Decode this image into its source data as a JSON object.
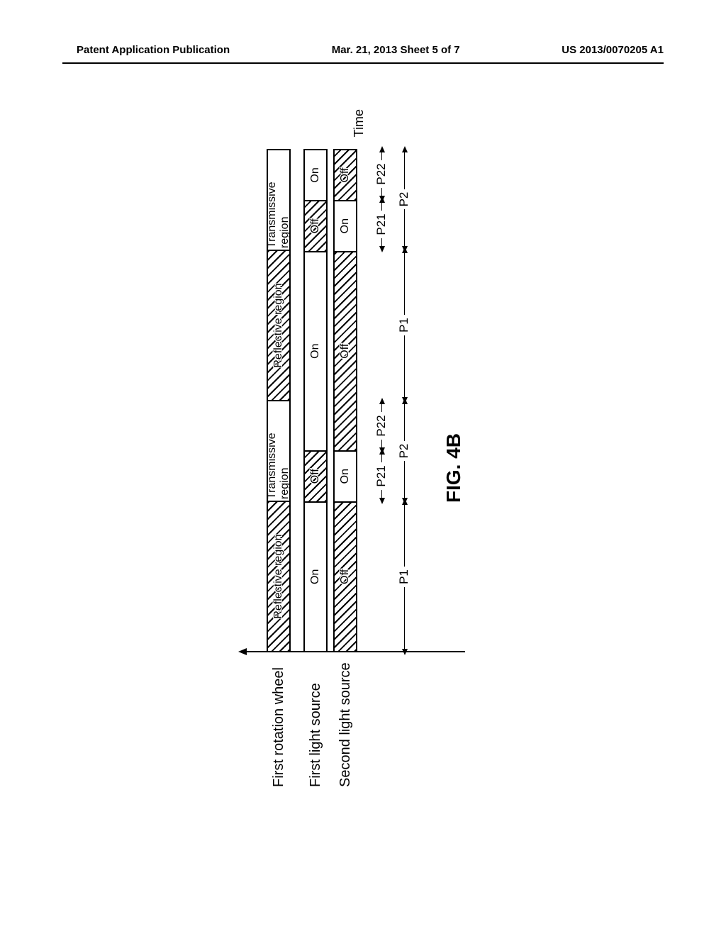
{
  "header": {
    "left": "Patent Application Publication",
    "center": "Mar. 21, 2013  Sheet 5 of 7",
    "right": "US 2013/0070205 A1"
  },
  "rows": {
    "wheel": {
      "label": "First rotation wheel",
      "segs": [
        {
          "text": "Reflective region",
          "hatched": true,
          "flex": 3
        },
        {
          "text": "Transmissive region",
          "hatched": false,
          "flex": 2
        },
        {
          "text": "Reflective region",
          "hatched": true,
          "flex": 3
        },
        {
          "text": "Transmissive region",
          "hatched": false,
          "flex": 2
        }
      ]
    },
    "first_light": {
      "label": "First light source",
      "segs": [
        {
          "text": "On",
          "hatched": false,
          "flex": 3
        },
        {
          "text": "Off",
          "hatched": true,
          "flex": 1
        },
        {
          "text": "On",
          "hatched": false,
          "flex": 4
        },
        {
          "text": "Off",
          "hatched": true,
          "flex": 1
        },
        {
          "text": "On",
          "hatched": false,
          "flex": 1
        }
      ]
    },
    "second_light": {
      "label": "Second light source",
      "segs": [
        {
          "text": "Off",
          "hatched": true,
          "flex": 3
        },
        {
          "text": "On",
          "hatched": false,
          "flex": 1
        },
        {
          "text": "Off",
          "hatched": true,
          "flex": 4
        },
        {
          "text": "On",
          "hatched": false,
          "flex": 1
        },
        {
          "text": "Off",
          "hatched": true,
          "flex": 1
        }
      ]
    }
  },
  "time_label": "Time",
  "dims_upper": [
    {
      "label": "",
      "flex": 3,
      "show": false
    },
    {
      "label": "P21",
      "flex": 1,
      "show": true
    },
    {
      "label": "P22",
      "flex": 1,
      "show": true
    },
    {
      "label": "",
      "flex": 3,
      "show": false
    },
    {
      "label": "P21",
      "flex": 1,
      "show": true
    },
    {
      "label": "P22",
      "flex": 1,
      "show": true
    }
  ],
  "dims_lower": [
    {
      "label": "P1",
      "flex": 3
    },
    {
      "label": "P2",
      "flex": 2
    },
    {
      "label": "P1",
      "flex": 3
    },
    {
      "label": "P2",
      "flex": 2
    }
  ],
  "figure_label": "FIG. 4B",
  "colors": {
    "bg": "#ffffff",
    "ink": "#000000"
  }
}
